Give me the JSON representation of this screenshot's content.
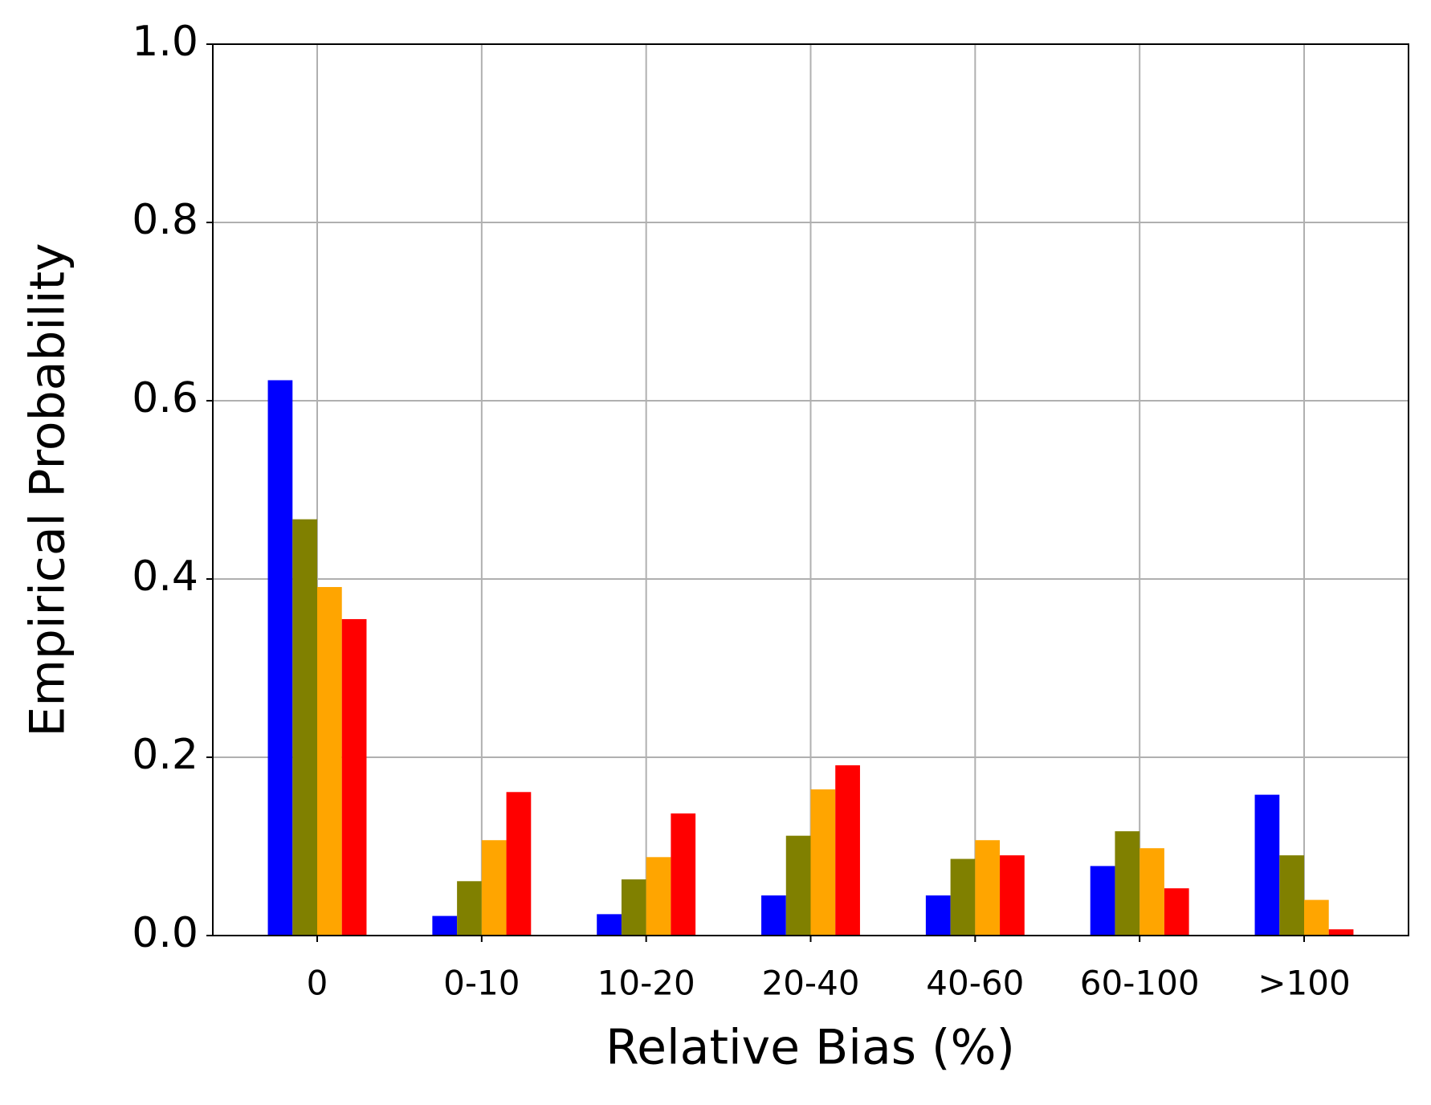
{
  "chart_data": {
    "type": "bar",
    "xlabel": "Relative Bias (%)",
    "ylabel": "Empirical Probability",
    "categories": [
      "0",
      "0-10",
      "10-20",
      "20-40",
      "40-60",
      "60-100",
      ">100"
    ],
    "series": [
      {
        "color": "#0000ff",
        "values": [
          0.623,
          0.022,
          0.024,
          0.045,
          0.045,
          0.078,
          0.158
        ]
      },
      {
        "color": "#808000",
        "values": [
          0.467,
          0.061,
          0.063,
          0.112,
          0.086,
          0.117,
          0.09
        ]
      },
      {
        "color": "#ffa500",
        "values": [
          0.391,
          0.107,
          0.088,
          0.164,
          0.107,
          0.098,
          0.04
        ]
      },
      {
        "color": "#ff0000",
        "values": [
          0.355,
          0.161,
          0.137,
          0.191,
          0.09,
          0.053,
          0.007
        ]
      }
    ],
    "ylim": [
      0,
      1
    ],
    "yticks": [
      {
        "value": 0,
        "label": "0.0"
      },
      {
        "value": 0.2,
        "label": "0.2"
      },
      {
        "value": 0.4,
        "label": "0.4"
      },
      {
        "value": 0.6,
        "label": "0.6"
      },
      {
        "value": 0.8,
        "label": "0.8"
      },
      {
        "value": 1,
        "label": "1.0"
      }
    ],
    "grid": true
  }
}
